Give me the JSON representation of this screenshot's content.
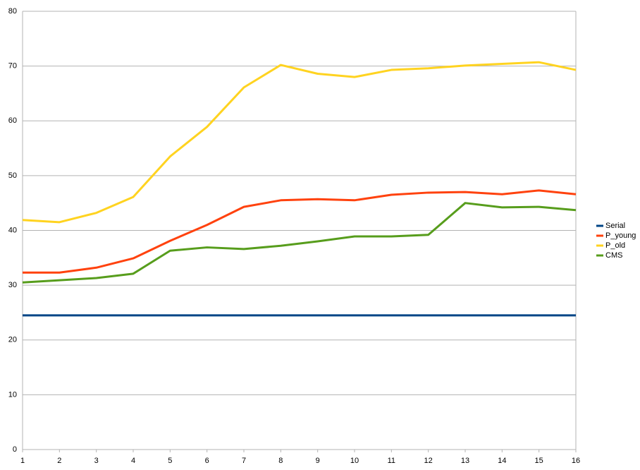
{
  "chart_data": {
    "type": "line",
    "x": [
      1,
      2,
      3,
      4,
      5,
      6,
      7,
      8,
      9,
      10,
      11,
      12,
      13,
      14,
      15,
      16
    ],
    "xlim": [
      1,
      16
    ],
    "xticks": [
      1,
      2,
      3,
      4,
      5,
      6,
      7,
      8,
      9,
      10,
      11,
      12,
      13,
      14,
      15,
      16
    ],
    "ylim": [
      0,
      80
    ],
    "yticks": [
      0,
      10,
      20,
      30,
      40,
      50,
      60,
      70,
      80
    ],
    "grid": true,
    "legend": "right",
    "series": [
      {
        "name": "Serial",
        "color": "#004586",
        "values": [
          24.5,
          24.5,
          24.5,
          24.5,
          24.5,
          24.5,
          24.5,
          24.5,
          24.5,
          24.5,
          24.5,
          24.5,
          24.5,
          24.5,
          24.5,
          24.5
        ]
      },
      {
        "name": "P_young",
        "color": "#ff420e",
        "values": [
          32.3,
          32.3,
          33.2,
          34.9,
          38.1,
          41.0,
          44.3,
          45.5,
          45.7,
          45.5,
          46.5,
          46.9,
          47.0,
          46.6,
          47.3,
          46.6
        ]
      },
      {
        "name": "P_old",
        "color": "#ffd320",
        "values": [
          41.9,
          41.5,
          43.2,
          46.1,
          53.5,
          58.9,
          66.1,
          70.2,
          68.6,
          68.0,
          69.3,
          69.6,
          70.1,
          70.4,
          70.7,
          69.3
        ]
      },
      {
        "name": "CMS",
        "color": "#579d1c",
        "values": [
          30.5,
          30.9,
          31.3,
          32.1,
          36.3,
          36.9,
          36.6,
          37.2,
          38.0,
          38.9,
          38.9,
          39.2,
          45.0,
          44.2,
          44.3,
          43.7
        ]
      }
    ]
  }
}
